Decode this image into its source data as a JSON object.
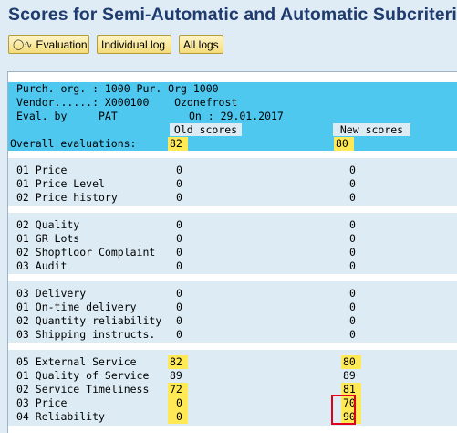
{
  "title": "Scores for Semi-Automatic and Automatic Subcriteria",
  "toolbar": {
    "evaluation": "Evaluation",
    "individual_log": "Individual log",
    "all_logs": "All logs"
  },
  "header": {
    "line1": "Purch. org. : 1000 Pur. Org 1000",
    "line2": "Vendor......: X000100    Ozonefrost",
    "line3_label": "Eval. by     PAT",
    "line3_on": "On : 29.01.2017"
  },
  "columns": {
    "old": "Old scores",
    "new": "New scores"
  },
  "overall": {
    "label": "Overall evaluations:",
    "old": "82",
    "new": "80"
  },
  "rows": [
    {
      "label": "01 Price",
      "old": "0",
      "new": "0"
    },
    {
      "label": "01 Price Level",
      "old": "0",
      "new": "0"
    },
    {
      "label": "02 Price history",
      "old": "0",
      "new": "0"
    },
    {
      "label": "02 Quality",
      "old": "0",
      "new": "0"
    },
    {
      "label": "01 GR Lots",
      "old": "0",
      "new": "0"
    },
    {
      "label": "02 Shopfloor Complaint",
      "old": "0",
      "new": "0"
    },
    {
      "label": "03 Audit",
      "old": "0",
      "new": "0"
    },
    {
      "label": "03 Delivery",
      "old": "0",
      "new": "0"
    },
    {
      "label": "01 On-time delivery",
      "old": "0",
      "new": "0"
    },
    {
      "label": "02 Quantity reliability",
      "old": "0",
      "new": "0"
    },
    {
      "label": "03 Shipping instructs.",
      "old": "0",
      "new": "0"
    },
    {
      "label": "05 External Service",
      "old": "82",
      "new": "80"
    },
    {
      "label": "01 Quality of Service",
      "old": "89",
      "new": "89"
    },
    {
      "label": "02 Service Timeliness",
      "old": "72",
      "new": "81"
    },
    {
      "label": "03 Price",
      "old": "0",
      "new": "70"
    },
    {
      "label": "04 Reliability",
      "old": "0",
      "new": "90"
    }
  ],
  "colors": {
    "header_bar": "#4fc8f0",
    "highlight": "#ffea55",
    "red_box": "#e0001b",
    "title": "#1f3c6e"
  }
}
